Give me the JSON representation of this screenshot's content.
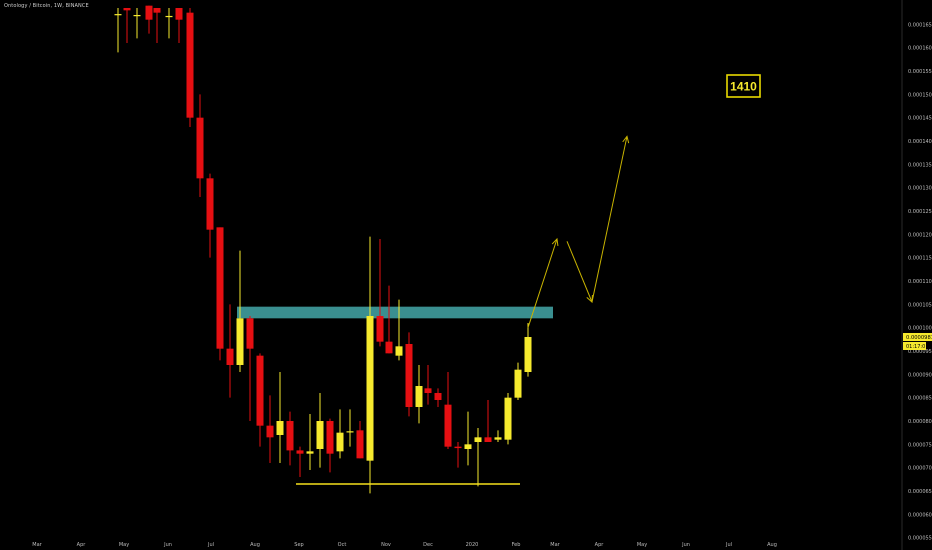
{
  "header": {
    "title": "Ontology / Bitcoin, 1W, BINANCE"
  },
  "price_label": "0.0000981",
  "timer_label": "01:17:0",
  "target_label": "1410",
  "chart_data": {
    "type": "candlestick",
    "title": "Ontology / Bitcoin, 1W, BINANCE",
    "ylim": [
      5.45e-05,
      0.0001685
    ],
    "y_ticks": [
      "0.0000550",
      "0.0000600",
      "0.0000650",
      "0.0000700",
      "0.0000750",
      "0.0000800",
      "0.0000850",
      "0.0000900",
      "0.0000950",
      "0.0001000",
      "0.0001050",
      "0.0001100",
      "0.0001150",
      "0.0001200",
      "0.0001250",
      "0.0001300",
      "0.0001350",
      "0.0001400",
      "0.0001450",
      "0.0001500",
      "0.0001550",
      "0.0001600",
      "0.0001650"
    ],
    "x_ticks": [
      {
        "label": "Mar",
        "week": 0.0
      },
      {
        "label": "Apr",
        "week": 4.4
      },
      {
        "label": "May",
        "week": 8.7
      },
      {
        "label": "Jun",
        "week": 13.1
      },
      {
        "label": "Jul",
        "week": 17.4
      },
      {
        "label": "Aug",
        "week": 21.8
      },
      {
        "label": "Sep",
        "week": 26.2
      },
      {
        "label": "Oct",
        "week": 30.5
      },
      {
        "label": "Nov",
        "week": 34.9
      },
      {
        "label": "Dec",
        "week": 39.1
      },
      {
        "label": "2020",
        "week": 43.5
      },
      {
        "label": "Feb",
        "week": 47.9
      },
      {
        "label": "Mar",
        "week": 51.8
      },
      {
        "label": "Apr",
        "week": 56.2
      },
      {
        "label": "May",
        "week": 60.5
      },
      {
        "label": "Jun",
        "week": 64.9
      },
      {
        "label": "Jul",
        "week": 69.2
      },
      {
        "label": "Aug",
        "week": 73.5
      }
    ],
    "candles": [
      {
        "w": 8.1,
        "o": 0.0001672,
        "h": 0.0001685,
        "l": 0.000159,
        "c": 0.0001672
      },
      {
        "w": 9.0,
        "o": 0.0001685,
        "h": 0.0001685,
        "l": 0.000161,
        "c": 0.000168
      },
      {
        "w": 10.0,
        "o": 0.000167,
        "h": 0.0001685,
        "l": 0.000162,
        "c": 0.000167
      },
      {
        "w": 11.2,
        "o": 0.000169,
        "h": 0.000169,
        "l": 0.000163,
        "c": 0.000166
      },
      {
        "w": 12.0,
        "o": 0.0001685,
        "h": 0.0001685,
        "l": 0.000161,
        "c": 0.0001675
      },
      {
        "w": 13.2,
        "o": 0.0001668,
        "h": 0.0001685,
        "l": 0.000162,
        "c": 0.0001668
      },
      {
        "w": 14.2,
        "o": 0.0001685,
        "h": 0.0001685,
        "l": 0.000161,
        "c": 0.000166
      },
      {
        "w": 15.3,
        "o": 0.0001675,
        "h": 0.0001685,
        "l": 0.000143,
        "c": 0.000145
      },
      {
        "w": 16.3,
        "o": 0.000145,
        "h": 0.00015,
        "l": 0.000128,
        "c": 0.000132
      },
      {
        "w": 17.3,
        "o": 0.000132,
        "h": 0.000133,
        "l": 0.000115,
        "c": 0.000121
      },
      {
        "w": 18.3,
        "o": 0.0001215,
        "h": 0.0001215,
        "l": 9.3e-05,
        "c": 9.55e-05
      },
      {
        "w": 19.3,
        "o": 9.55e-05,
        "h": 0.000105,
        "l": 8.5e-05,
        "c": 9.2e-05
      },
      {
        "w": 20.3,
        "o": 9.2e-05,
        "h": 0.0001165,
        "l": 9.05e-05,
        "c": 0.000102
      },
      {
        "w": 21.3,
        "o": 0.000102,
        "h": 0.0001025,
        "l": 8e-05,
        "c": 9.55e-05
      },
      {
        "w": 22.3,
        "o": 9.4e-05,
        "h": 9.45e-05,
        "l": 7.45e-05,
        "c": 7.9e-05
      },
      {
        "w": 23.3,
        "o": 7.9e-05,
        "h": 8.55e-05,
        "l": 7.1e-05,
        "c": 7.65e-05
      },
      {
        "w": 24.3,
        "o": 7.7e-05,
        "h": 9.05e-05,
        "l": 7.1e-05,
        "c": 8e-05
      },
      {
        "w": 25.3,
        "o": 8e-05,
        "h": 8.2e-05,
        "l": 7.05e-05,
        "c": 7.37e-05
      },
      {
        "w": 26.3,
        "o": 7.37e-05,
        "h": 7.45e-05,
        "l": 6.8e-05,
        "c": 7.3e-05
      },
      {
        "w": 27.3,
        "o": 7.3e-05,
        "h": 8.15e-05,
        "l": 6.95e-05,
        "c": 7.35e-05
      },
      {
        "w": 28.3,
        "o": 7.4e-05,
        "h": 8.6e-05,
        "l": 7e-05,
        "c": 8e-05
      },
      {
        "w": 29.3,
        "o": 8e-05,
        "h": 8.05e-05,
        "l": 6.9e-05,
        "c": 7.3e-05
      },
      {
        "w": 30.3,
        "o": 7.35e-05,
        "h": 8.25e-05,
        "l": 7.2e-05,
        "c": 7.75e-05
      },
      {
        "w": 31.3,
        "o": 7.78e-05,
        "h": 8.25e-05,
        "l": 7.45e-05,
        "c": 7.78e-05
      },
      {
        "w": 32.3,
        "o": 7.8e-05,
        "h": 8e-05,
        "l": 7.2e-05,
        "c": 7.2e-05
      },
      {
        "w": 33.3,
        "o": 7.15e-05,
        "h": 0.0001195,
        "l": 6.45e-05,
        "c": 0.0001025
      },
      {
        "w": 34.3,
        "o": 0.0001025,
        "h": 0.000119,
        "l": 9.6e-05,
        "c": 9.7e-05
      },
      {
        "w": 35.2,
        "o": 9.7e-05,
        "h": 0.000109,
        "l": 9.45e-05,
        "c": 9.45e-05
      },
      {
        "w": 36.2,
        "o": 9.4e-05,
        "h": 0.000106,
        "l": 9.3e-05,
        "c": 9.6e-05
      },
      {
        "w": 37.2,
        "o": 9.65e-05,
        "h": 9.9e-05,
        "l": 8.1e-05,
        "c": 8.3e-05
      },
      {
        "w": 38.2,
        "o": 8.3e-05,
        "h": 9.2e-05,
        "l": 7.95e-05,
        "c": 8.75e-05
      },
      {
        "w": 39.1,
        "o": 8.7e-05,
        "h": 9.2e-05,
        "l": 8.35e-05,
        "c": 8.6e-05
      },
      {
        "w": 40.1,
        "o": 8.6e-05,
        "h": 8.7e-05,
        "l": 8.3e-05,
        "c": 8.45e-05
      },
      {
        "w": 41.1,
        "o": 8.35e-05,
        "h": 9.05e-05,
        "l": 7.4e-05,
        "c": 7.45e-05
      },
      {
        "w": 42.1,
        "o": 7.45e-05,
        "h": 7.55e-05,
        "l": 7e-05,
        "c": 7.42e-05
      },
      {
        "w": 43.1,
        "o": 7.4e-05,
        "h": 8.2e-05,
        "l": 7.05e-05,
        "c": 7.5e-05
      },
      {
        "w": 44.1,
        "o": 7.55e-05,
        "h": 7.85e-05,
        "l": 6.6e-05,
        "c": 7.65e-05
      },
      {
        "w": 45.1,
        "o": 7.65e-05,
        "h": 8.45e-05,
        "l": 7.55e-05,
        "c": 7.55e-05
      },
      {
        "w": 46.1,
        "o": 7.6e-05,
        "h": 7.8e-05,
        "l": 7.55e-05,
        "c": 7.65e-05
      },
      {
        "w": 47.1,
        "o": 7.6e-05,
        "h": 8.6e-05,
        "l": 7.5e-05,
        "c": 8.5e-05
      },
      {
        "w": 48.1,
        "o": 8.5e-05,
        "h": 9.25e-05,
        "l": 8.45e-05,
        "c": 9.1e-05
      },
      {
        "w": 49.1,
        "o": 9.05e-05,
        "h": 0.000101,
        "l": 8.95e-05,
        "c": 9.8e-05
      }
    ],
    "support_line": {
      "w_start": 25.9,
      "w_end": 48.3,
      "value": 6.65e-05
    },
    "resistance_zone": {
      "w_start": 20.0,
      "w_end": 51.6,
      "top": 0.0001045,
      "bottom": 0.000102
    },
    "projection_path": [
      {
        "w": 49.1,
        "v": 0.0001
      },
      {
        "w": 52.0,
        "v": 0.000119
      },
      {
        "w": 53.0,
        "v": 0.0001185
      },
      {
        "w": 55.5,
        "v": 0.0001055
      },
      {
        "w": 59.0,
        "v": 0.000141
      }
    ],
    "colors": {
      "up": "#f6ea2e",
      "down": "#e60f12",
      "zone": "#3a8f90",
      "support": "#f6e01c",
      "projection": "#c9b400",
      "label_border": "#e8d900"
    }
  }
}
